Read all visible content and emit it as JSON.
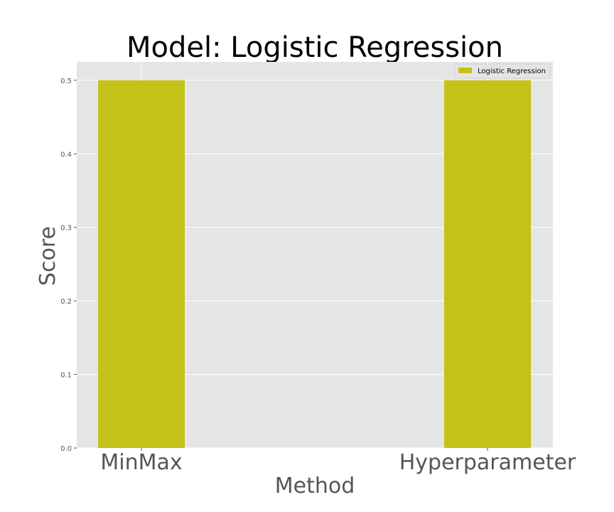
{
  "chart_data": {
    "type": "bar",
    "title": "Model: Logistic Regression",
    "xlabel": "Method",
    "ylabel": "Score",
    "categories": [
      "MinMax",
      "Hyperparameter"
    ],
    "series": [
      {
        "name": "Logistic Regression",
        "values": [
          0.5,
          0.5
        ],
        "color": "#c4c219"
      }
    ],
    "ylim": [
      0,
      0.525
    ],
    "yticks": [
      "0.0",
      "0.1",
      "0.2",
      "0.3",
      "0.4",
      "0.5"
    ],
    "ytick_values": [
      0,
      0.1,
      0.2,
      0.3,
      0.4,
      0.5
    ],
    "grid": true,
    "legend_position": "top-right",
    "background": "#e5e5e5"
  }
}
